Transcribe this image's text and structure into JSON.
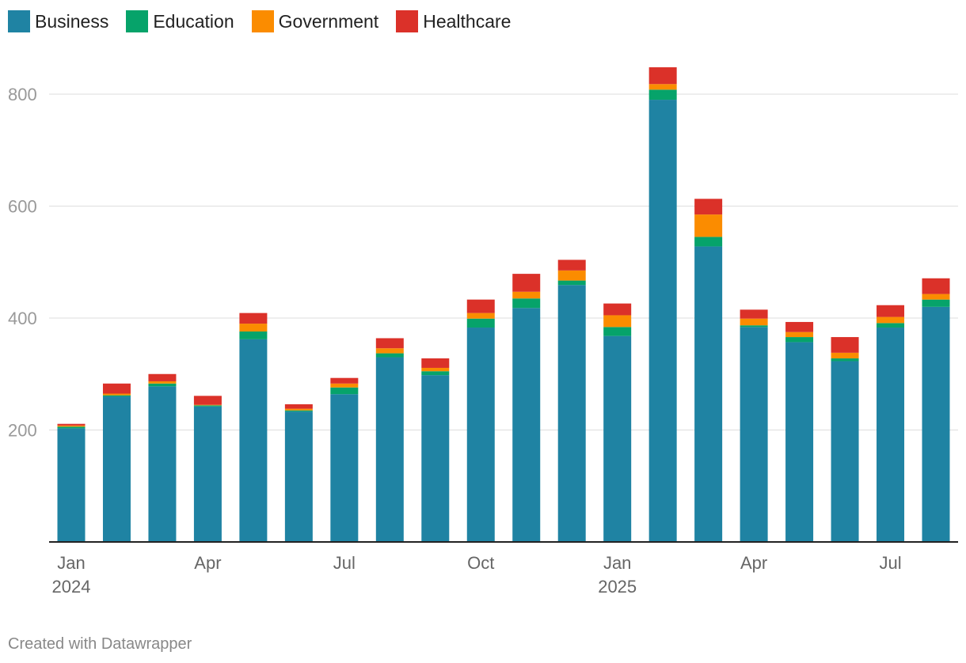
{
  "legend": [
    {
      "label": "Business",
      "color": "#1f83a3"
    },
    {
      "label": "Education",
      "color": "#06a36a"
    },
    {
      "label": "Government",
      "color": "#fb8c00"
    },
    {
      "label": "Healthcare",
      "color": "#db3129"
    }
  ],
  "footer": "Created with Datawrapper",
  "chart_data": {
    "type": "bar",
    "stacked": true,
    "categories": [
      "Jan 2024",
      "Feb 2024",
      "Mar 2024",
      "Apr 2024",
      "May 2024",
      "Jun 2024",
      "Jul 2024",
      "Aug 2024",
      "Sep 2024",
      "Oct 2024",
      "Nov 2024",
      "Dec 2024",
      "Jan 2025",
      "Feb 2025",
      "Mar 2025",
      "Apr 2025",
      "May 2025",
      "Jun 2025",
      "Jul 2025",
      "Aug 2025"
    ],
    "series": [
      {
        "name": "Business",
        "color": "#1f83a3",
        "values": [
          203,
          260,
          278,
          242,
          362,
          233,
          264,
          330,
          298,
          383,
          418,
          459,
          368,
          790,
          528,
          384,
          357,
          323,
          383,
          420
        ]
      },
      {
        "name": "Education",
        "color": "#06a36a",
        "values": [
          3,
          2,
          5,
          2,
          14,
          2,
          12,
          7,
          7,
          16,
          17,
          8,
          16,
          18,
          17,
          3,
          9,
          5,
          8,
          13
        ]
      },
      {
        "name": "Government",
        "color": "#fb8c00",
        "values": [
          2,
          3,
          4,
          1,
          14,
          3,
          7,
          9,
          6,
          10,
          12,
          18,
          21,
          10,
          40,
          12,
          9,
          10,
          11,
          10
        ]
      },
      {
        "name": "Healthcare",
        "color": "#db3129",
        "values": [
          3,
          18,
          13,
          16,
          19,
          8,
          10,
          18,
          17,
          24,
          32,
          19,
          21,
          30,
          28,
          16,
          18,
          28,
          21,
          28
        ]
      }
    ],
    "ylim": [
      0,
      880
    ],
    "yticks": [
      200,
      400,
      600,
      800
    ],
    "xticks": [
      {
        "index": 0,
        "label": "Jan",
        "sublabel": "2024"
      },
      {
        "index": 3,
        "label": "Apr",
        "sublabel": ""
      },
      {
        "index": 6,
        "label": "Jul",
        "sublabel": ""
      },
      {
        "index": 9,
        "label": "Oct",
        "sublabel": ""
      },
      {
        "index": 12,
        "label": "Jan",
        "sublabel": "2025"
      },
      {
        "index": 15,
        "label": "Apr",
        "sublabel": ""
      },
      {
        "index": 18,
        "label": "Jul",
        "sublabel": ""
      }
    ],
    "title": "",
    "xlabel": "",
    "ylabel": "",
    "grid": true,
    "legend_position": "top-left"
  }
}
